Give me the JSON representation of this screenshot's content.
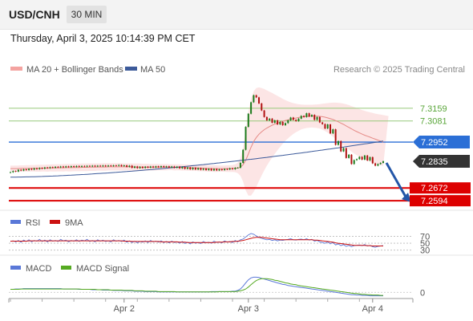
{
  "header": {
    "symbol": "USD/CNH",
    "timeframe": "30 MIN"
  },
  "datetime": "Thursday, April 3, 2025 10:14:39 PM CET",
  "legend": {
    "bollinger": {
      "label": "MA 20 + Bollinger Bands",
      "color": "#f4a3a0"
    },
    "ma50": {
      "label": "MA 50",
      "color": "#3c5a9a"
    }
  },
  "source": "Research © 2025 Trading Central",
  "colors": {
    "up": "#1a7a1a",
    "down": "#b01010",
    "accent_blue": "#2b6fd6",
    "accent_red": "#dd0000",
    "forecast_arrow": "#2356a8"
  },
  "chart_data": {
    "type": "candlestick",
    "x_ticks": [
      "Apr 2",
      "Apr 3",
      "Apr 4"
    ],
    "price_range": [
      7.2575,
      7.331
    ],
    "levels": [
      {
        "label": "7.3159",
        "value": 7.3159,
        "kind": "resistance",
        "color": "#96c97a"
      },
      {
        "label": "7.3081",
        "value": 7.3081,
        "kind": "resistance",
        "color": "#96c97a"
      },
      {
        "label": "7.2952",
        "value": 7.2952,
        "kind": "pivot",
        "color": "#2b6fd6"
      },
      {
        "label": "7.2835",
        "value": 7.2835,
        "kind": "last",
        "color": "#333333"
      },
      {
        "label": "7.2672",
        "value": 7.2672,
        "kind": "support",
        "color": "#dd0000"
      },
      {
        "label": "7.2594",
        "value": 7.2594,
        "kind": "support",
        "color": "#dd0000"
      }
    ],
    "close": [
      7.2768,
      7.2775,
      7.2772,
      7.2783,
      7.2778,
      7.2786,
      7.2781,
      7.2789,
      7.2784,
      7.2792,
      7.2787,
      7.2794,
      7.279,
      7.2797,
      7.2793,
      7.2799,
      7.2795,
      7.2801,
      7.2797,
      7.2803,
      7.2798,
      7.2804,
      7.2799,
      7.2805,
      7.28,
      7.2806,
      7.2801,
      7.2806,
      7.2802,
      7.2807,
      7.2803,
      7.2808,
      7.2803,
      7.2808,
      7.2804,
      7.2809,
      7.2804,
      7.2809,
      7.2805,
      7.281,
      7.2807,
      7.2812,
      7.2805,
      7.281,
      7.2801,
      7.2808,
      7.2795,
      7.2803,
      7.2793,
      7.2801,
      7.2794,
      7.2802,
      7.2796,
      7.2803,
      7.2797,
      7.2804,
      7.2798,
      7.2805,
      7.2799,
      7.2804,
      7.2797,
      7.2803,
      7.2795,
      7.2802,
      7.2792,
      7.28,
      7.2789,
      7.2797,
      7.2786,
      7.2795,
      7.2785,
      7.2793,
      7.2783,
      7.279,
      7.2781,
      7.2789,
      7.2779,
      7.2788,
      7.2779,
      7.2786,
      7.2781,
      7.2788,
      7.2785,
      7.2792,
      7.2787,
      7.2795,
      7.2795,
      7.2825,
      7.2905,
      7.3045,
      7.3125,
      7.3195,
      7.3238,
      7.3225,
      7.3188,
      7.3145,
      7.3105,
      7.3085,
      7.3095,
      7.307,
      7.3085,
      7.306,
      7.3075,
      7.3055,
      7.3068,
      7.3085,
      7.3102,
      7.3088,
      7.308,
      7.3095,
      7.3112,
      7.3105,
      7.3128,
      7.3108,
      7.3118,
      7.3088,
      7.3105,
      7.3072,
      7.3062,
      7.3035,
      7.306,
      7.3005,
      7.303,
      7.2935,
      7.2958,
      7.2895,
      7.2915,
      7.2855,
      7.2875,
      7.2818,
      7.2842,
      7.2848,
      7.2862,
      7.2845,
      7.287,
      7.284,
      7.286,
      7.2822,
      7.2808,
      7.2818,
      7.2825,
      7.2835
    ],
    "ma20": [
      7.279,
      7.279,
      7.279,
      7.279,
      7.2791,
      7.2791,
      7.2791,
      7.2791,
      7.2792,
      7.2792,
      7.2792,
      7.2792,
      7.2793,
      7.2793,
      7.2793,
      7.2794,
      7.2794,
      7.2794,
      7.2795,
      7.2795,
      7.2795,
      7.2796,
      7.2796,
      7.2796,
      7.2797,
      7.2797,
      7.2797,
      7.2798,
      7.2798,
      7.2798,
      7.2799,
      7.2799,
      7.2799,
      7.28,
      7.28,
      7.28,
      7.28,
      7.2801,
      7.2801,
      7.2801,
      7.2801,
      7.2801,
      7.2801,
      7.2801,
      7.2801,
      7.2801,
      7.28,
      7.28,
      7.28,
      7.2799,
      7.2799,
      7.2799,
      7.2799,
      7.2799,
      7.2799,
      7.2799,
      7.2799,
      7.2799,
      7.2799,
      7.2799,
      7.2799,
      7.2799,
      7.2798,
      7.2798,
      7.2798,
      7.2797,
      7.2797,
      7.2796,
      7.2796,
      7.2795,
      7.2795,
      7.2794,
      7.2793,
      7.2793,
      7.2792,
      7.2791,
      7.2791,
      7.279,
      7.279,
      7.279,
      7.279,
      7.279,
      7.279,
      7.279,
      7.2791,
      7.2792,
      7.2794,
      7.2799,
      7.2813,
      7.2841,
      7.288,
      7.292,
      7.2955,
      7.298,
      7.3,
      7.3015,
      7.3028,
      7.3038,
      7.3047,
      7.3055,
      7.3062,
      7.3068,
      7.3074,
      7.3079,
      7.3084,
      7.3088,
      7.3092,
      7.3096,
      7.3099,
      7.3102,
      7.3105,
      7.3107,
      7.3109,
      7.311,
      7.3111,
      7.3111,
      7.311,
      7.3109,
      7.3107,
      7.3104,
      7.31,
      7.3095,
      7.309,
      7.3083,
      7.3076,
      7.3068,
      7.306,
      7.3051,
      7.3042,
      7.3033,
      7.3024,
      7.3016,
      7.3008,
      7.3001,
      7.2994,
      7.2988,
      7.2982,
      7.2976,
      7.297,
      7.2964,
      7.2958,
      7.2952
    ],
    "bb_upper": [
      7.2808,
      7.2808,
      7.2809,
      7.2809,
      7.281,
      7.281,
      7.2811,
      7.2811,
      7.2812,
      7.2812,
      7.2813,
      7.2813,
      7.2814,
      7.2814,
      7.2815,
      7.2815,
      7.2816,
      7.2816,
      7.2817,
      7.2817,
      7.2818,
      7.2818,
      7.2819,
      7.2819,
      7.282,
      7.282,
      7.282,
      7.2821,
      7.2821,
      7.2821,
      7.2822,
      7.2822,
      7.2822,
      7.2822,
      7.2822,
      7.2823,
      7.2823,
      7.2823,
      7.2823,
      7.2823,
      7.2823,
      7.2823,
      7.2823,
      7.2822,
      7.2822,
      7.2822,
      7.2822,
      7.2821,
      7.2821,
      7.2821,
      7.282,
      7.282,
      7.282,
      7.2819,
      7.2819,
      7.2819,
      7.2818,
      7.2818,
      7.2818,
      7.2818,
      7.2817,
      7.2817,
      7.2817,
      7.2816,
      7.2816,
      7.2816,
      7.2815,
      7.2815,
      7.2814,
      7.2814,
      7.2813,
      7.2813,
      7.2812,
      7.2812,
      7.2811,
      7.2811,
      7.281,
      7.281,
      7.281,
      7.2809,
      7.2809,
      7.2809,
      7.281,
      7.281,
      7.2812,
      7.2816,
      7.2826,
      7.2852,
      7.2915,
      7.3025,
      7.3135,
      7.3215,
      7.3262,
      7.3282,
      7.3286,
      7.3282,
      7.3276,
      7.3268,
      7.326,
      7.3252,
      7.3243,
      7.3234,
      7.3225,
      7.3216,
      7.3208,
      7.3201,
      7.3195,
      7.319,
      7.3186,
      7.3183,
      7.3181,
      7.318,
      7.318,
      7.318,
      7.318,
      7.3181,
      7.3182,
      7.3184,
      7.3186,
      7.3188,
      7.319,
      7.3192,
      7.3193,
      7.3193,
      7.3192,
      7.319,
      7.3187,
      7.3183,
      7.3178,
      7.3172,
      7.3166,
      7.316,
      7.3154,
      7.3148,
      7.3143,
      7.3138,
      7.3134,
      7.313,
      7.3126,
      7.3123,
      7.312,
      7.3117,
      7.3114,
      7.3111
    ],
    "bb_lower": [
      7.2772,
      7.2772,
      7.2771,
      7.2771,
      7.2772,
      7.2772,
      7.2771,
      7.2771,
      7.2772,
      7.2772,
      7.2771,
      7.2771,
      7.2772,
      7.2772,
      7.2771,
      7.2773,
      7.2772,
      7.2772,
      7.2773,
      7.2773,
      7.2772,
      7.2774,
      7.2773,
      7.2773,
      7.2774,
      7.2774,
      7.2774,
      7.2775,
      7.2775,
      7.2775,
      7.2776,
      7.2776,
      7.2776,
      7.2778,
      7.2778,
      7.2777,
      7.2777,
      7.2779,
      7.2779,
      7.2779,
      7.2779,
      7.2779,
      7.2779,
      7.278,
      7.278,
      7.278,
      7.2778,
      7.2779,
      7.2779,
      7.2777,
      7.2778,
      7.2778,
      7.2778,
      7.2779,
      7.2779,
      7.2779,
      7.278,
      7.278,
      7.278,
      7.278,
      7.2781,
      7.2781,
      7.2779,
      7.278,
      7.278,
      7.2778,
      7.2779,
      7.2777,
      7.2778,
      7.2776,
      7.2777,
      7.2775,
      7.2774,
      7.2774,
      7.2773,
      7.2771,
      7.2772,
      7.277,
      7.277,
      7.2771,
      7.2771,
      7.2771,
      7.277,
      7.277,
      7.277,
      7.2768,
      7.2762,
      7.2746,
      7.2711,
      7.2657,
      7.2625,
      7.2625,
      7.2648,
      7.2678,
      7.2714,
      7.2748,
      7.278,
      7.2808,
      7.2834,
      7.2858,
      7.2881,
      7.2902,
      7.2923,
      7.2942,
      7.296,
      7.2975,
      7.2989,
      7.3002,
      7.3012,
      7.3021,
      7.3029,
      7.3034,
      7.3038,
      7.304,
      7.3041,
      7.304,
      7.3038,
      7.3034,
      7.3028,
      7.302,
      7.301,
      7.2998,
      7.2985,
      7.2971,
      7.2958,
      7.2946,
      7.2933,
      7.2919,
      7.2906,
      7.2894,
      7.2882,
      7.2872,
      7.2862,
      7.2854,
      7.2846,
      7.2838,
      7.2832,
      7.2826,
      7.282,
      7.2815,
      7.2811,
      7.2807,
      7.2802,
      7.2797,
      7.2793
    ],
    "ma50_start": 7.2738,
    "ma50_end": 7.2958,
    "forecast": {
      "from": 7.2835,
      "to": 7.2594,
      "direction": "down"
    },
    "rsi": {
      "label": "RSI",
      "color": "#5a78d8",
      "ma_label": "9MA",
      "ma_color": "#cc1111",
      "levels": [
        {
          "label": "70",
          "value": 70
        },
        {
          "label": "50",
          "value": 50
        },
        {
          "label": "30",
          "value": 30
        }
      ],
      "range": [
        20,
        85
      ],
      "values": [
        55,
        57,
        54,
        58,
        53,
        59,
        55,
        60,
        54,
        58,
        56,
        61,
        55,
        59,
        54,
        60,
        56,
        58,
        55,
        61,
        57,
        59,
        54,
        58,
        56,
        60,
        55,
        59,
        57,
        61,
        55,
        58,
        54,
        60,
        56,
        59,
        55,
        57,
        54,
        60,
        56,
        58,
        55,
        59,
        53,
        57,
        52,
        56,
        51,
        55,
        53,
        57,
        52,
        58,
        54,
        56,
        53,
        57,
        52,
        55,
        51,
        56,
        52,
        54,
        50,
        55,
        49,
        53,
        48,
        54,
        50,
        52,
        49,
        55,
        51,
        53,
        50,
        56,
        52,
        54,
        51,
        57,
        53,
        55,
        52,
        58,
        54,
        60,
        62,
        68,
        74,
        78,
        76,
        71,
        67,
        64,
        62,
        60,
        61,
        58,
        60,
        57,
        59,
        58,
        60,
        61,
        63,
        60,
        59,
        61,
        62,
        60,
        63,
        59,
        61,
        56,
        58,
        54,
        52,
        50,
        54,
        48,
        52,
        45,
        48,
        43,
        46,
        41,
        44,
        40,
        43,
        44,
        45,
        43,
        46,
        42,
        44,
        40,
        38,
        41,
        42,
        43
      ],
      "ma_values": [
        56,
        56,
        56,
        56,
        56,
        56,
        56,
        57,
        57,
        57,
        57,
        57,
        57,
        57,
        57,
        57,
        57,
        57,
        57,
        57,
        57,
        57,
        57,
        57,
        57,
        57,
        57,
        57,
        57,
        57,
        57,
        57,
        57,
        57,
        57,
        57,
        57,
        57,
        57,
        57,
        57,
        57,
        57,
        56,
        56,
        56,
        55,
        55,
        55,
        55,
        55,
        55,
        55,
        55,
        55,
        55,
        55,
        54,
        54,
        54,
        54,
        54,
        54,
        54,
        53,
        53,
        53,
        52,
        52,
        52,
        52,
        52,
        52,
        52,
        52,
        52,
        52,
        52,
        53,
        53,
        53,
        54,
        54,
        54,
        55,
        55,
        56,
        57,
        58,
        60,
        62,
        64,
        66,
        67,
        67,
        67,
        66,
        65,
        64,
        63,
        62,
        61,
        60,
        60,
        60,
        60,
        60,
        60,
        60,
        60,
        60,
        60,
        60,
        60,
        60,
        59,
        59,
        58,
        57,
        56,
        55,
        54,
        53,
        51,
        50,
        49,
        48,
        47,
        46,
        45,
        44,
        44,
        44,
        44,
        44,
        43,
        43,
        42,
        42,
        42,
        42,
        42
      ]
    },
    "macd": {
      "label": "MACD",
      "color": "#5a78d8",
      "signal_label": "MACD Signal",
      "signal_color": "#55aa22",
      "zero_label": "0",
      "range": [
        -0.0012,
        0.0045
      ],
      "values": [
        0.0008,
        0.0008,
        0.0009,
        0.0009,
        0.0009,
        0.001,
        0.001,
        0.001,
        0.001,
        0.001,
        0.001,
        0.001,
        0.001,
        0.001,
        0.001,
        0.001,
        0.001,
        0.001,
        0.001,
        0.001,
        0.0009,
        0.0009,
        0.0009,
        0.0009,
        0.0009,
        0.0009,
        0.0008,
        0.0008,
        0.0008,
        0.0008,
        0.0008,
        0.0007,
        0.0007,
        0.0007,
        0.0007,
        0.0006,
        0.0006,
        0.0006,
        0.0006,
        0.0005,
        0.0005,
        0.0005,
        0.0005,
        0.0004,
        0.0004,
        0.0004,
        0.0004,
        0.0003,
        0.0003,
        0.0003,
        0.0003,
        0.0002,
        0.0002,
        0.0002,
        0.0002,
        0.0002,
        0.0001,
        0.0001,
        0.0001,
        0.0001,
        0.0001,
        0.0001,
        0.0001,
        0.0001,
        0.0001,
        0.0001,
        0.0001,
        0.0001,
        0.0001,
        0.0001,
        0.0001,
        0.0001,
        0.0001,
        0.0001,
        0.0001,
        0.0001,
        0.0002,
        0.0002,
        0.0002,
        0.0002,
        0.0002,
        0.0002,
        0.0002,
        0.0002,
        0.0003,
        0.0003,
        0.0005,
        0.0009,
        0.0016,
        0.0025,
        0.0033,
        0.0038,
        0.004,
        0.004,
        0.0039,
        0.0037,
        0.0035,
        0.0033,
        0.0031,
        0.0029,
        0.0027,
        0.0025,
        0.0023,
        0.0021,
        0.002,
        0.0018,
        0.0017,
        0.0016,
        0.0015,
        0.0014,
        0.0013,
        0.0012,
        0.0011,
        0.001,
        0.0009,
        0.0008,
        0.0007,
        0.0006,
        0.0005,
        0.0004,
        0.0003,
        0.0002,
        0.0001,
        0.0,
        -0.0001,
        -0.0002,
        -0.0003,
        -0.0004,
        -0.0005,
        -0.0006,
        -0.0006,
        -0.0007,
        -0.0007,
        -0.0008,
        -0.0008,
        -0.0008,
        -0.0009,
        -0.0009,
        -0.0009,
        -0.0009,
        -0.0009,
        -0.0009
      ],
      "signal_values": [
        0.0008,
        0.0008,
        0.0008,
        0.0008,
        0.0009,
        0.0009,
        0.0009,
        0.0009,
        0.0009,
        0.0009,
        0.0009,
        0.0009,
        0.0009,
        0.0009,
        0.0009,
        0.0009,
        0.0009,
        0.0009,
        0.0009,
        0.0009,
        0.0009,
        0.0009,
        0.0009,
        0.0009,
        0.0009,
        0.0009,
        0.0009,
        0.0008,
        0.0008,
        0.0008,
        0.0008,
        0.0008,
        0.0008,
        0.0007,
        0.0007,
        0.0007,
        0.0007,
        0.0007,
        0.0006,
        0.0006,
        0.0006,
        0.0006,
        0.0006,
        0.0005,
        0.0005,
        0.0005,
        0.0005,
        0.0004,
        0.0004,
        0.0004,
        0.0004,
        0.0003,
        0.0003,
        0.0003,
        0.0003,
        0.0003,
        0.0002,
        0.0002,
        0.0002,
        0.0002,
        0.0002,
        0.0002,
        0.0002,
        0.0001,
        0.0001,
        0.0001,
        0.0001,
        0.0001,
        0.0001,
        0.0001,
        0.0001,
        0.0001,
        0.0001,
        0.0001,
        0.0001,
        0.0001,
        0.0001,
        0.0001,
        0.0001,
        0.0002,
        0.0002,
        0.0002,
        0.0002,
        0.0002,
        0.0002,
        0.0002,
        0.0003,
        0.0004,
        0.0006,
        0.0009,
        0.0014,
        0.002,
        0.0026,
        0.0031,
        0.0034,
        0.0036,
        0.0036,
        0.0036,
        0.0035,
        0.0034,
        0.0032,
        0.0031,
        0.0029,
        0.0027,
        0.0025,
        0.0024,
        0.0022,
        0.0021,
        0.002,
        0.0018,
        0.0017,
        0.0016,
        0.0015,
        0.0014,
        0.0013,
        0.0012,
        0.0011,
        0.001,
        0.0009,
        0.0008,
        0.0007,
        0.0006,
        0.0005,
        0.0004,
        0.0003,
        0.0002,
        0.0001,
        0.0,
        -0.0001,
        -0.0002,
        -0.0003,
        -0.0003,
        -0.0004,
        -0.0005,
        -0.0005,
        -0.0006,
        -0.0006,
        -0.0007,
        -0.0007,
        -0.0007,
        -0.0008,
        -0.0008
      ]
    }
  }
}
